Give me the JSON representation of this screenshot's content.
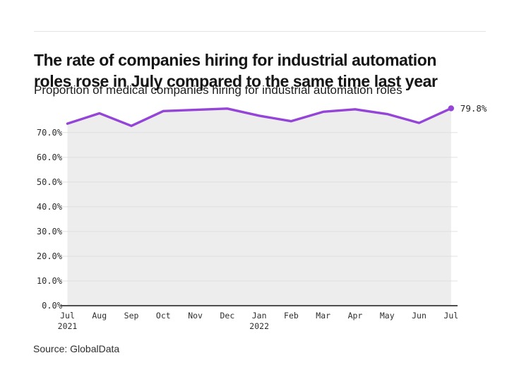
{
  "header": {
    "title_lines": [
      "The rate of companies hiring for industrial automation",
      "roles rose in July compared to the same time last year"
    ],
    "subtitle": "Proportion of medical companies hiring for industrial automation roles"
  },
  "footer": {
    "source": "Source: GlobalData"
  },
  "chart_data": {
    "type": "line",
    "title": "The rate of companies hiring for industrial automation roles rose in July compared to the same time last year",
    "subtitle": "Proportion of medical companies hiring for industrial automation roles",
    "x_labels": [
      "Jul",
      "Aug",
      "Sep",
      "Oct",
      "Nov",
      "Dec",
      "Jan",
      "Feb",
      "Mar",
      "Apr",
      "May",
      "Jun",
      "Jul"
    ],
    "x_year_marks": [
      {
        "index": 0,
        "label": "2021"
      },
      {
        "index": 6,
        "label": "2022"
      }
    ],
    "series": [
      {
        "name": "Proportion of medical companies hiring for industrial automation roles",
        "values": [
          73.6,
          77.8,
          72.7,
          78.7,
          79.2,
          79.7,
          76.8,
          74.6,
          78.4,
          79.4,
          77.5,
          73.9,
          79.8
        ]
      }
    ],
    "end_label": "79.8%",
    "y_tick_labels": [
      "0.0%",
      "10.0%",
      "20.0%",
      "30.0%",
      "40.0%",
      "50.0%",
      "60.0%",
      "70.0%"
    ],
    "y_tick_values": [
      0,
      10,
      20,
      30,
      40,
      50,
      60,
      70
    ],
    "ylim": [
      0,
      81
    ],
    "grid": "horizontal",
    "legend": "none",
    "colors": {
      "line": "#9544d8",
      "dot": "#9544d8",
      "area_fill": "#ededed",
      "gridline": "#e0e0e0",
      "axis": "#4f4f4f",
      "tick_text": "#2e2e2e",
      "end_label_text": "#262626"
    }
  }
}
